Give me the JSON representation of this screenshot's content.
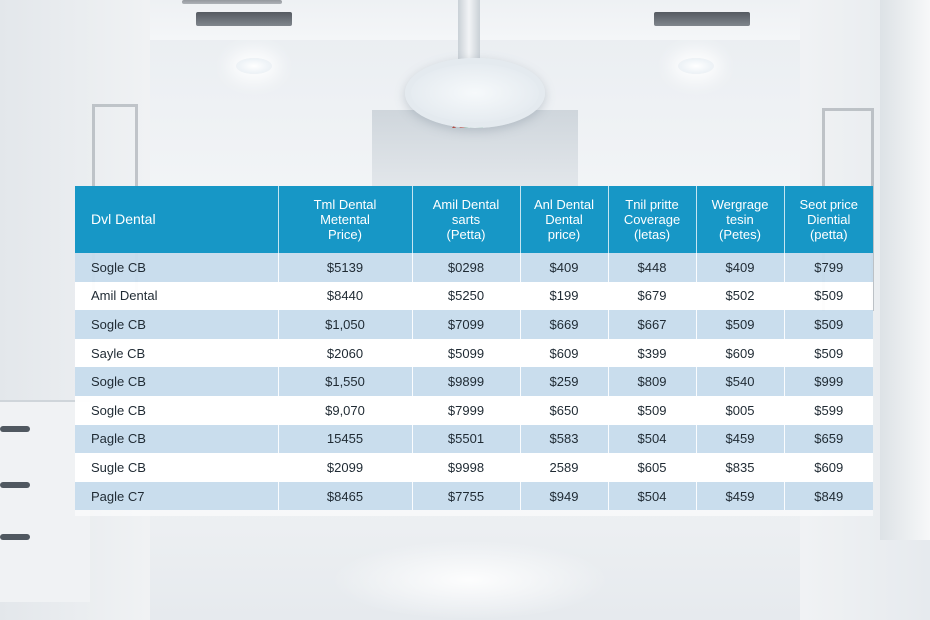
{
  "background": {
    "sign_text_part1": "A",
    "sign_text_part2": "mi"
  },
  "table": {
    "headers": [
      "Dvl Dental",
      "Tml Dental\nMetental\nPrice)",
      "Amil Dental\nsarts\n(Petta)",
      "Anl Dental\nDental\nprice)",
      "Tnil pritte\nCoverage\n(letas)",
      "Wergrage\ntesin\n(Petes)",
      "Seot price\nDiential\n(petta)"
    ],
    "rows": [
      [
        "Sogle CB",
        "$5139",
        "$0298",
        "$409",
        "$448",
        "$409",
        "$799"
      ],
      [
        "Amil Dental",
        "$8440",
        "$5250",
        "$199",
        "$679",
        "$502",
        "$509"
      ],
      [
        "Sogle CB",
        "$1,050",
        "$7099",
        "$669",
        "$667",
        "$509",
        "$509"
      ],
      [
        "Sayle CB",
        "$2060",
        "$5099",
        "$609",
        "$399",
        "$609",
        "$509"
      ],
      [
        "Sogle CB",
        "$1,550",
        "$9899",
        "$259",
        "$809",
        "$540",
        "$999"
      ],
      [
        "Sogle CB",
        "$9,070",
        "$7999",
        "$650",
        "$509",
        "$005",
        "$599"
      ],
      [
        "Pagle CB",
        "15455",
        "$5501",
        "$583",
        "$504",
        "$459",
        "$659"
      ],
      [
        "Sugle CB",
        "$2099",
        "$9998",
        "2589",
        "$605",
        "$835",
        "$609"
      ],
      [
        "Pagle C7",
        "$8465",
        "$7755",
        "$949",
        "$504",
        "$459",
        "$849"
      ]
    ]
  }
}
